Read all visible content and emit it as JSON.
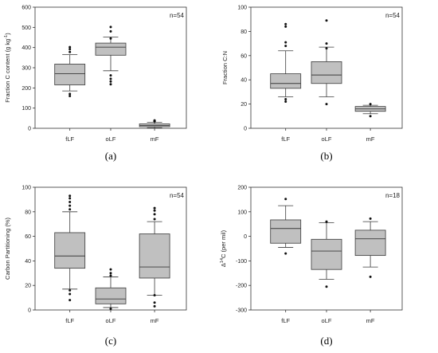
{
  "colors": {
    "box_fill": "#c0c0c0",
    "box_stroke": "#3a3a3a",
    "axis": "#333333",
    "text": "#222222"
  },
  "chart_data": [
    {
      "type": "box",
      "panel_label": "(a)",
      "ylabel": "Fraction C content (g kg",
      "ylabel_sup": "-1",
      "ylabel_end": ")",
      "annotation": "n=54",
      "ylim": [
        0,
        600
      ],
      "yticks": [
        0,
        100,
        200,
        300,
        400,
        500,
        600
      ],
      "categories": [
        "fLF",
        "oLF",
        "mF"
      ],
      "boxes": [
        {
          "category": "fLF",
          "whisker_low": 185,
          "q1": 215,
          "median": 270,
          "q3": 318,
          "whisker_high": 365,
          "outliers": [
            160,
            170,
            378,
            392,
            402
          ]
        },
        {
          "category": "oLF",
          "whisker_low": 285,
          "q1": 362,
          "median": 402,
          "q3": 422,
          "whisker_high": 452,
          "outliers": [
            218,
            232,
            245,
            262,
            445,
            480,
            502
          ]
        },
        {
          "category": "mF",
          "whisker_low": 3,
          "q1": 8,
          "median": 14,
          "q3": 22,
          "whisker_high": 30,
          "outliers": [
            33,
            36,
            39
          ]
        }
      ]
    },
    {
      "type": "box",
      "panel_label": "(b)",
      "ylabel": "Fraction C:N",
      "ylabel_sup": "",
      "ylabel_end": "",
      "annotation": "n=54",
      "ylim": [
        0,
        100
      ],
      "yticks": [
        0,
        20,
        40,
        60,
        80,
        100
      ],
      "categories": [
        "fLF",
        "oLF",
        "mF"
      ],
      "boxes": [
        {
          "category": "fLF",
          "whisker_low": 26,
          "q1": 33,
          "median": 37,
          "q3": 45,
          "whisker_high": 64,
          "outliers": [
            22,
            24,
            68,
            71,
            84,
            86
          ]
        },
        {
          "category": "oLF",
          "whisker_low": 26,
          "q1": 37,
          "median": 44,
          "q3": 55,
          "whisker_high": 67,
          "outliers": [
            20,
            66,
            70,
            89
          ]
        },
        {
          "category": "mF",
          "whisker_low": 12,
          "q1": 14,
          "median": 16,
          "q3": 18,
          "whisker_high": 19,
          "outliers": [
            10,
            20
          ]
        }
      ]
    },
    {
      "type": "box",
      "panel_label": "(c)",
      "ylabel": "Carbon Partitioning (%)",
      "ylabel_sup": "",
      "ylabel_end": "",
      "annotation": "n=54",
      "ylim": [
        0,
        100
      ],
      "yticks": [
        0,
        20,
        40,
        60,
        80,
        100
      ],
      "categories": [
        "fLF",
        "oLF",
        "mF"
      ],
      "boxes": [
        {
          "category": "fLF",
          "whisker_low": 17,
          "q1": 34,
          "median": 44,
          "q3": 63,
          "whisker_high": 80,
          "outliers": [
            8,
            13,
            16,
            82,
            85,
            88,
            91,
            93
          ]
        },
        {
          "category": "oLF",
          "whisker_low": 2,
          "q1": 5,
          "median": 9,
          "q3": 18,
          "whisker_high": 27,
          "outliers": [
            1,
            28,
            30,
            33
          ]
        },
        {
          "category": "mF",
          "whisker_low": 12,
          "q1": 26,
          "median": 35,
          "q3": 62,
          "whisker_high": 72,
          "outliers": [
            3,
            6,
            12,
            74,
            78,
            81,
            83
          ]
        }
      ]
    },
    {
      "type": "box",
      "panel_label": "(d)",
      "ylabel": "Δ",
      "ylabel_sup": "14",
      "ylabel_end": "C (per mil)",
      "annotation": "n=18",
      "ylim": [
        -300,
        200
      ],
      "yticks": [
        -300,
        -200,
        -100,
        0,
        100,
        200
      ],
      "categories": [
        "fLF",
        "oLF",
        "mF"
      ],
      "boxes": [
        {
          "category": "fLF",
          "whisker_low": -45,
          "q1": -28,
          "median": 32,
          "q3": 67,
          "whisker_high": 125,
          "outliers": [
            -70,
            152
          ]
        },
        {
          "category": "oLF",
          "whisker_low": -175,
          "q1": -135,
          "median": -60,
          "q3": -12,
          "whisker_high": 55,
          "outliers": [
            -205,
            60
          ]
        },
        {
          "category": "mF",
          "whisker_low": -125,
          "q1": -78,
          "median": -10,
          "q3": 25,
          "whisker_high": 60,
          "outliers": [
            -165,
            72
          ]
        }
      ]
    }
  ]
}
